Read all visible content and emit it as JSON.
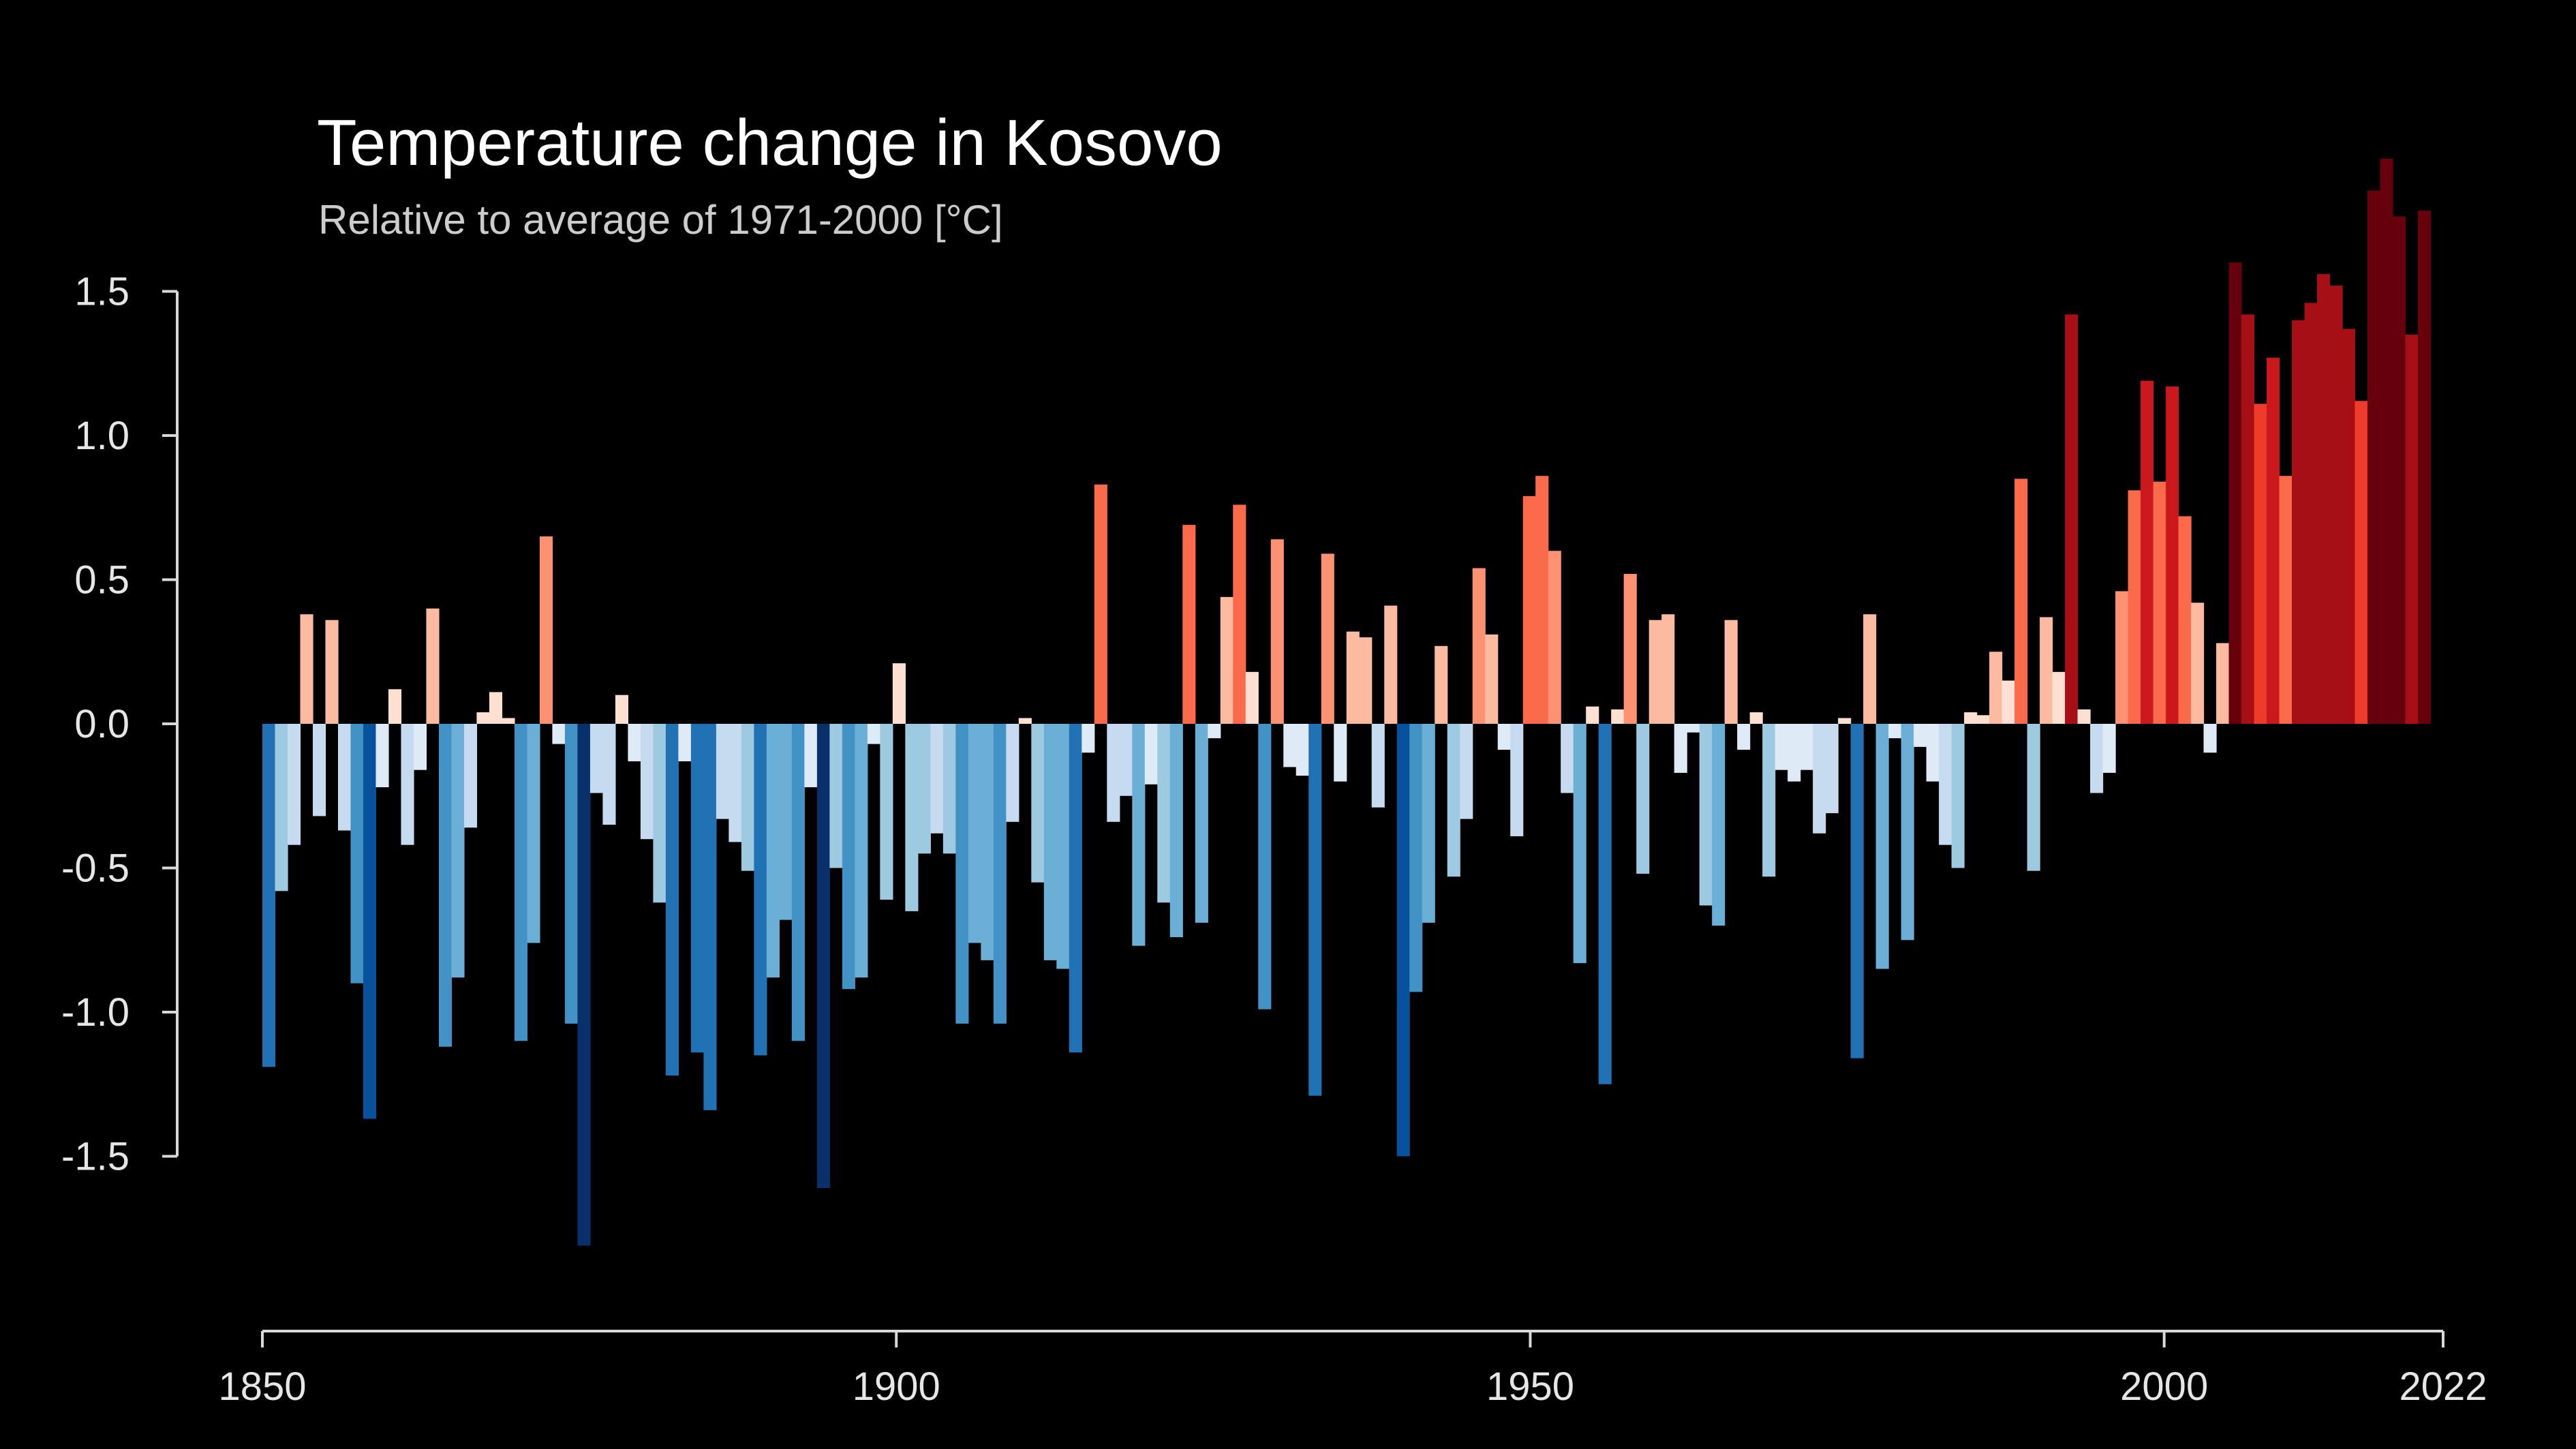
{
  "chart_data": {
    "type": "bar",
    "title": "Temperature change in Kosovo",
    "subtitle": "Relative to average of 1971-2000  [°C]",
    "xlabel": "",
    "ylabel": "",
    "x_start": 1850,
    "x_end": 2022,
    "xlim": [
      1850,
      2022
    ],
    "ylim": [
      -2.1,
      1.9
    ],
    "y_ticks": [
      1.5,
      1.0,
      0.5,
      0.0,
      -0.5,
      -1.0,
      -1.5
    ],
    "y_tick_labels": [
      "1.5",
      "1.0",
      "0.5",
      "0.0",
      "-0.5",
      "-1.0",
      "-1.5"
    ],
    "x_ticks": [
      1850,
      1900,
      1950,
      2000,
      2022
    ],
    "x_tick_labels": [
      "1850",
      "1900",
      "1950",
      "2000",
      "2022"
    ],
    "color_scale": {
      "negative": [
        "#deebf7",
        "#c6dbef",
        "#9ecae1",
        "#6baed6",
        "#4292c6",
        "#2171b5",
        "#08519c",
        "#08306b"
      ],
      "positive": [
        "#fee0d2",
        "#fcbba1",
        "#fc9272",
        "#fb6a4a",
        "#ef3b2c",
        "#cb181d",
        "#a50f15",
        "#67000d"
      ],
      "range": 1.8
    },
    "values": [
      -1.19,
      -0.58,
      -0.42,
      0.38,
      -0.32,
      0.36,
      -0.37,
      -0.9,
      -1.37,
      -0.22,
      0.12,
      -0.42,
      -0.16,
      0.4,
      -1.12,
      -0.88,
      -0.36,
      0.04,
      0.11,
      0.02,
      -1.1,
      -0.76,
      0.65,
      -0.07,
      -1.04,
      -1.81,
      -0.24,
      -0.35,
      0.1,
      -0.13,
      -0.4,
      -0.62,
      -1.22,
      -0.13,
      -1.14,
      -1.34,
      -0.33,
      -0.41,
      -0.51,
      -1.15,
      -0.88,
      -0.68,
      -1.1,
      -0.22,
      -1.61,
      -0.5,
      -0.92,
      -0.88,
      -0.07,
      -0.61,
      0.21,
      -0.65,
      -0.45,
      -0.38,
      -0.45,
      -1.04,
      -0.76,
      -0.82,
      -1.04,
      -0.34,
      0.02,
      -0.55,
      -0.82,
      -0.85,
      -1.14,
      -0.1,
      0.83,
      -0.34,
      -0.25,
      -0.77,
      -0.21,
      -0.62,
      -0.74,
      0.69,
      -0.69,
      -0.05,
      0.44,
      0.76,
      0.18,
      -0.99,
      0.64,
      -0.15,
      -0.18,
      -1.29,
      0.59,
      -0.2,
      0.32,
      0.3,
      -0.29,
      0.41,
      -1.5,
      -0.93,
      -0.69,
      0.27,
      -0.53,
      -0.33,
      0.54,
      0.31,
      -0.09,
      -0.39,
      0.79,
      0.86,
      0.6,
      -0.24,
      -0.83,
      0.06,
      -1.25,
      0.05,
      0.52,
      -0.52,
      0.36,
      0.38,
      -0.17,
      -0.03,
      -0.63,
      -0.7,
      0.36,
      -0.09,
      0.04,
      -0.53,
      -0.16,
      -0.2,
      -0.16,
      -0.38,
      -0.31,
      0.02,
      -1.16,
      0.38,
      -0.85,
      -0.05,
      -0.75,
      -0.08,
      -0.2,
      -0.42,
      -0.5,
      0.04,
      0.03,
      0.25,
      0.15,
      0.85,
      -0.51,
      0.37,
      0.18,
      1.42,
      0.05,
      -0.24,
      -0.17,
      0.46,
      0.81,
      1.19,
      0.84,
      1.17,
      0.72,
      0.42,
      -0.1,
      0.28,
      1.6,
      1.42,
      1.11,
      1.27,
      0.86,
      1.4,
      1.46,
      1.56,
      1.52,
      1.37,
      1.12,
      1.85,
      1.96,
      1.76,
      1.35,
      1.78
    ]
  }
}
